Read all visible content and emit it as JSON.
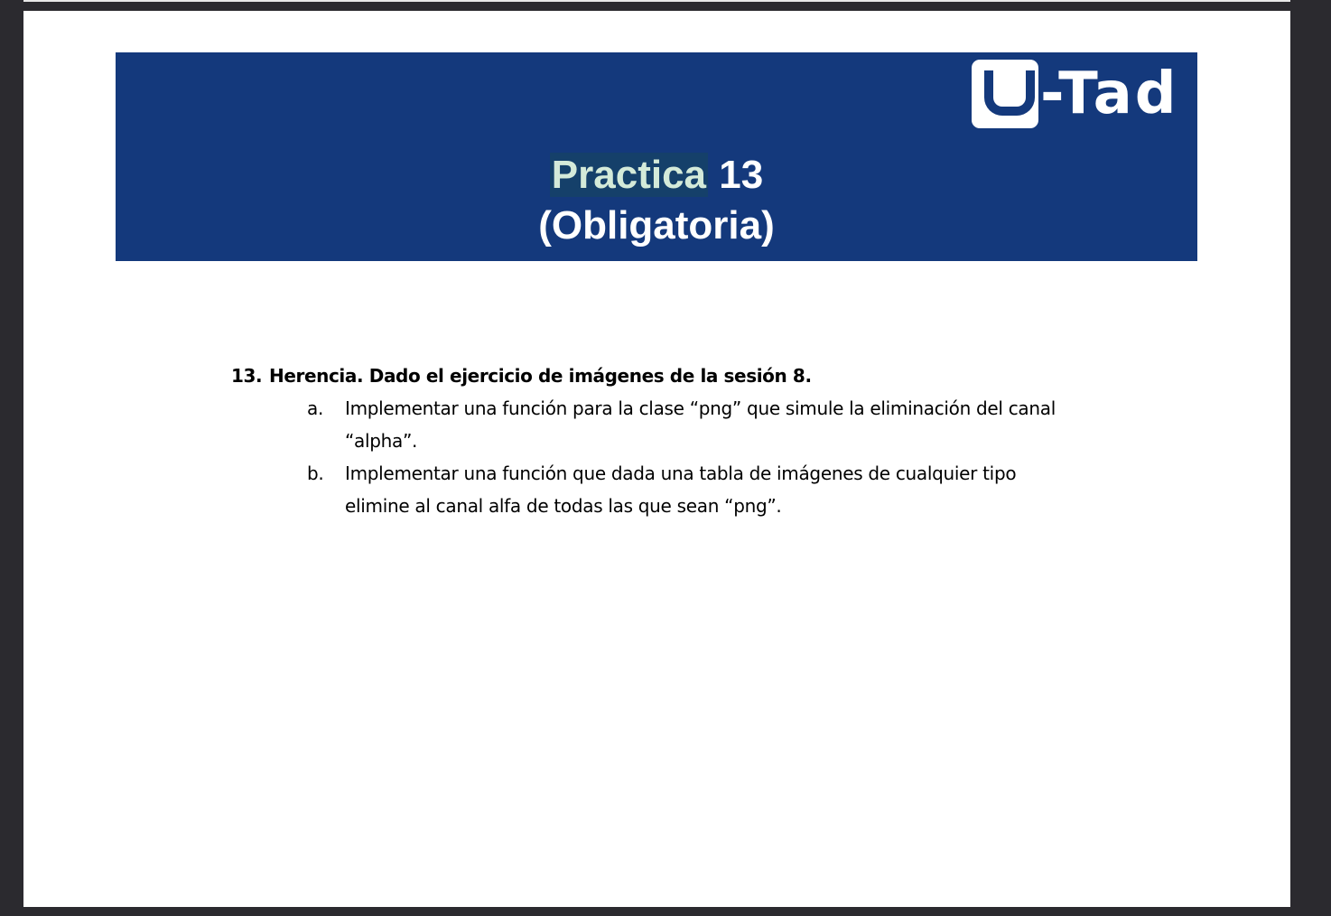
{
  "header": {
    "logo_letter": "U",
    "logo_rest": "-Tad",
    "title_highlight": "Practica",
    "title_number": " 13",
    "title_subtitle": "(Obligatoria)"
  },
  "exercise": {
    "number": "13.",
    "heading": "Herencia. Dado el ejercicio de imágenes de la sesión 8.",
    "items": [
      {
        "letter": "a.",
        "text": "Implementar una función para la clase “png” que simule la eliminación del canal “alpha”."
      },
      {
        "letter": "b.",
        "text": "Implementar una función que dada una tabla de imágenes de cualquier tipo elimine al canal alfa de todas las que sean “png”."
      }
    ]
  },
  "colors": {
    "banner": "#14397c",
    "page_background": "#2b2a2f",
    "title_highlight_bg": "#15406a",
    "title_highlight_fg": "#d4ead9"
  }
}
